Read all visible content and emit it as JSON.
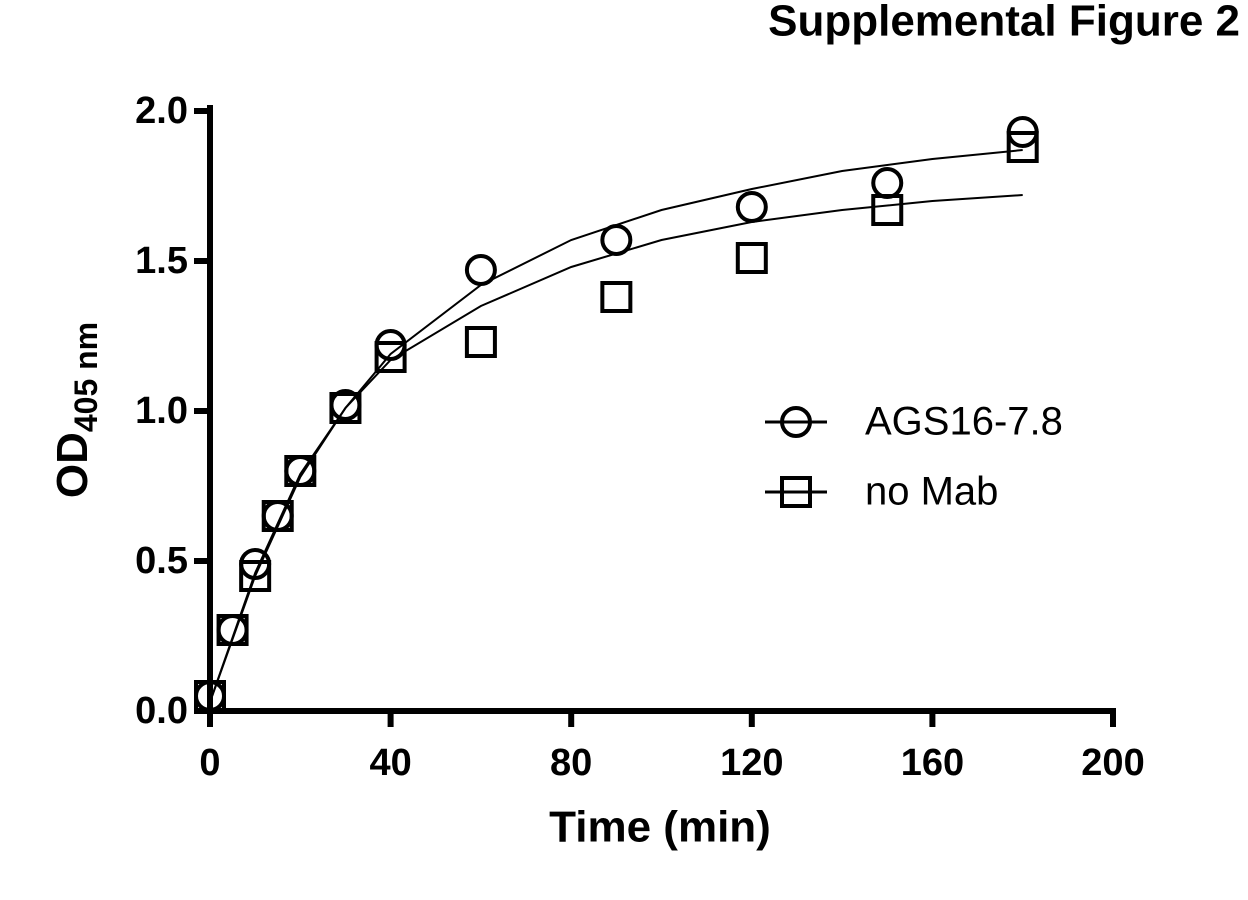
{
  "chart_data": {
    "type": "scatter",
    "title": "Supplemental Figure 2",
    "xlabel": "Time (min)",
    "ylabel": "OD",
    "ylabel_sub": "405 nm",
    "x": [
      0,
      5,
      10,
      15,
      20,
      30,
      40,
      60,
      90,
      120,
      150,
      180
    ],
    "series": [
      {
        "name": "AGS16-7.8",
        "marker": "circle",
        "color": "#000000",
        "values": [
          0.05,
          0.27,
          0.49,
          0.65,
          0.8,
          1.02,
          1.22,
          1.47,
          1.57,
          1.68,
          1.76,
          1.93
        ],
        "fit": {
          "x": [
            0,
            10,
            20,
            30,
            40,
            60,
            80,
            100,
            120,
            140,
            160,
            180
          ],
          "values": [
            0.03,
            0.45,
            0.78,
            1.01,
            1.19,
            1.42,
            1.57,
            1.67,
            1.74,
            1.8,
            1.84,
            1.87
          ]
        }
      },
      {
        "name": "no Mab",
        "marker": "square",
        "color": "#000000",
        "values": [
          0.05,
          0.27,
          0.45,
          0.65,
          0.8,
          1.01,
          1.18,
          1.23,
          1.38,
          1.51,
          1.67,
          1.88
        ],
        "fit": {
          "x": [
            0,
            10,
            20,
            30,
            40,
            60,
            80,
            100,
            120,
            140,
            160,
            180
          ],
          "values": [
            0.03,
            0.46,
            0.79,
            1.01,
            1.17,
            1.35,
            1.48,
            1.57,
            1.63,
            1.67,
            1.7,
            1.72
          ]
        }
      }
    ],
    "xlim": [
      0,
      200
    ],
    "xticks": [
      0,
      40,
      80,
      120,
      160,
      200
    ],
    "ylim": [
      0,
      2
    ],
    "yticks": [
      {
        "value": 0,
        "label": "0.0"
      },
      {
        "value": 0.5,
        "label": "0.5"
      },
      {
        "value": 1,
        "label": "1.0"
      },
      {
        "value": 1.5,
        "label": "1.5"
      },
      {
        "value": 2,
        "label": "2.0"
      }
    ]
  }
}
